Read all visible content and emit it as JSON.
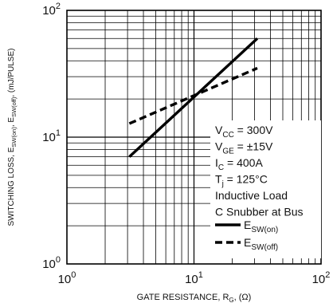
{
  "chart_data": {
    "type": "line",
    "scale": {
      "x": "log",
      "y": "log"
    },
    "xlim": [
      1,
      100
    ],
    "ylim": [
      1,
      100
    ],
    "grid": true,
    "xlabel": {
      "main": "GATE RESISTANCE, R",
      "sub": "G",
      "tail": ", (Ω)"
    },
    "ylabel": {
      "parts": [
        {
          "text": "SWITCHING LOSS, E",
          "sub": false
        },
        {
          "text": "SW(on)",
          "sub": true
        },
        {
          "text": ", E",
          "sub": false
        },
        {
          "text": "SW(off)",
          "sub": true
        },
        {
          "text": ", (mJ/PULSE)",
          "sub": false
        }
      ]
    },
    "x_ticks": [
      {
        "value": 1,
        "base": "10",
        "exp": "0"
      },
      {
        "value": 10,
        "base": "10",
        "exp": "1"
      },
      {
        "value": 100,
        "base": "10",
        "exp": "2"
      }
    ],
    "y_ticks": [
      {
        "value": 1,
        "base": "10",
        "exp": "0"
      },
      {
        "value": 10,
        "base": "10",
        "exp": "1"
      },
      {
        "value": 100,
        "base": "10",
        "exp": "2"
      }
    ],
    "series": [
      {
        "name": "E_SW(on)",
        "label_main": "E",
        "label_sub": "SW(on)",
        "style": "solid",
        "color": "#000000",
        "points": [
          [
            3.1,
            7.0
          ],
          [
            31.5,
            60.0
          ]
        ]
      },
      {
        "name": "E_SW(off)",
        "label_main": "E",
        "label_sub": "SW(off)",
        "style": "dashed",
        "color": "#000000",
        "points": [
          [
            3.1,
            12.8
          ],
          [
            31.5,
            35.0
          ]
        ]
      }
    ],
    "conditions": [
      {
        "main": "V",
        "sub": "CC",
        "tail": " = 300V"
      },
      {
        "main": "V",
        "sub": "GE",
        "tail": " = ±15V"
      },
      {
        "main": "I",
        "sub": "C",
        "tail": " = 400A"
      },
      {
        "main": "T",
        "sub": "j",
        "tail": " = 125°C"
      },
      {
        "main": "Inductive Load",
        "sub": "",
        "tail": ""
      },
      {
        "main": "C Snubber at Bus",
        "sub": "",
        "tail": ""
      }
    ]
  }
}
